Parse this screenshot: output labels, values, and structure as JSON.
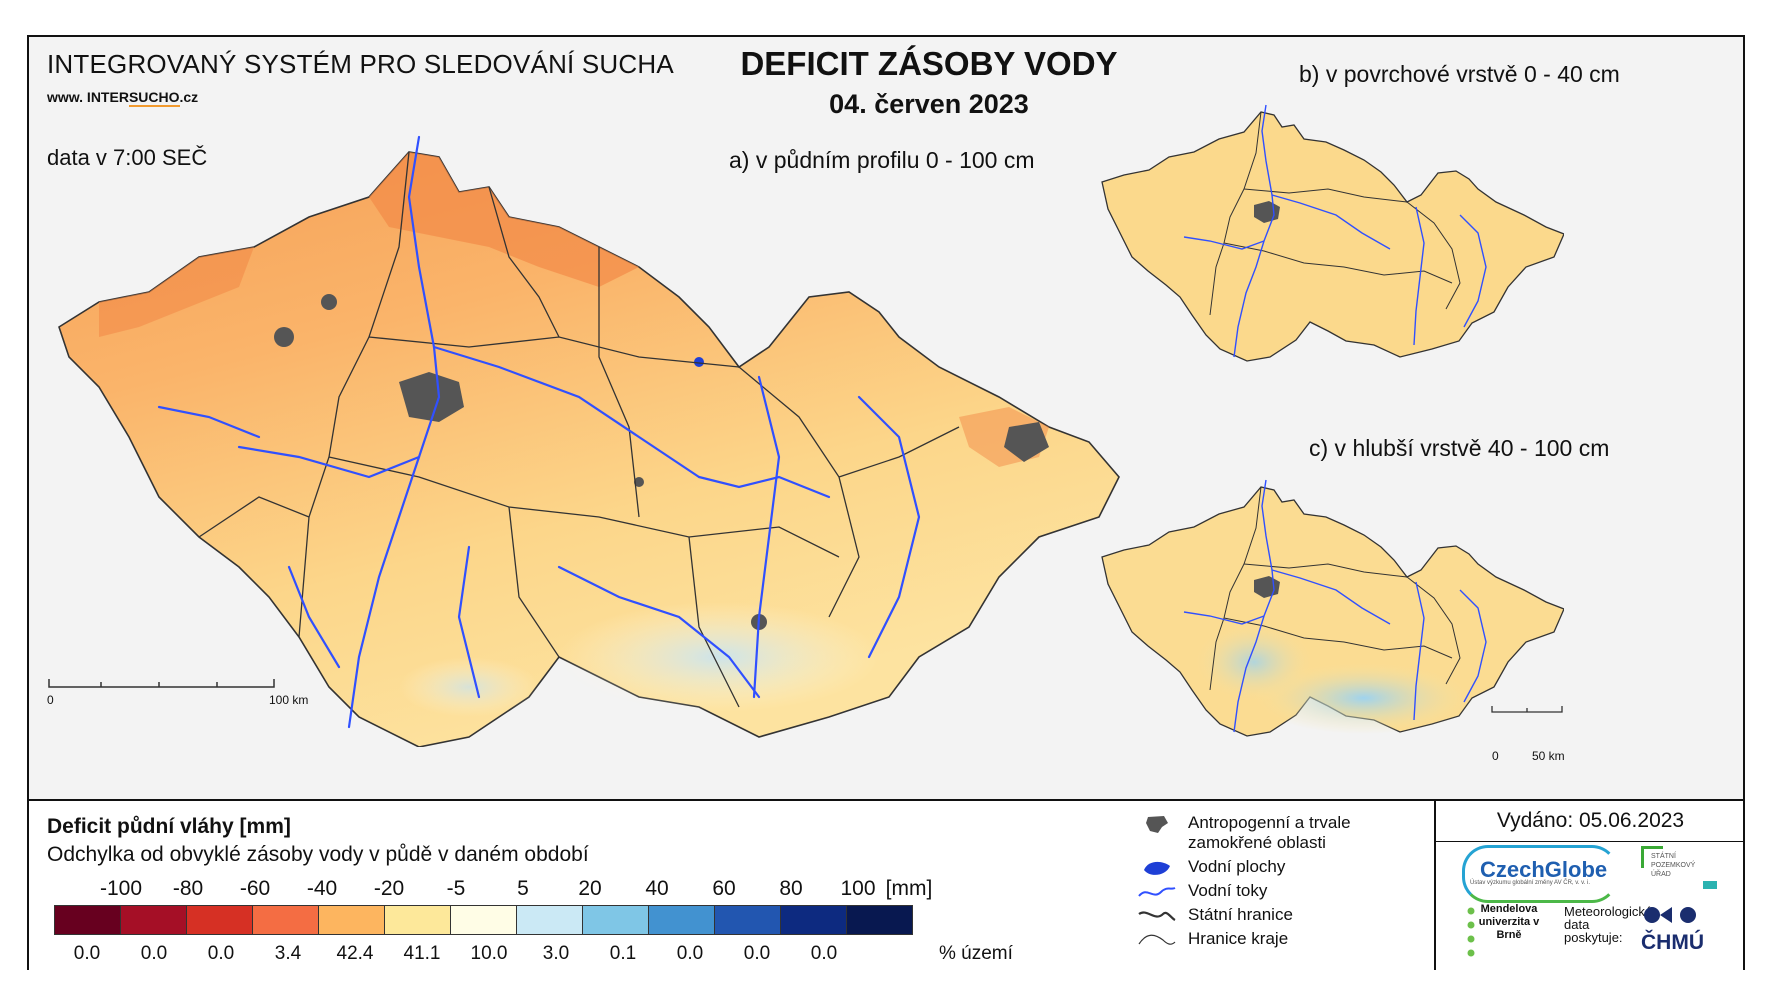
{
  "header": {
    "system_title": "INTEGROVANÝ SYSTÉM PRO SLEDOVÁNÍ SUCHA",
    "website_prefix": "www. INTER",
    "website_highlight": "SUCHO",
    "website_suffix": ".cz",
    "data_time": "data v 7:00 SEČ",
    "main_title": "DEFICIT ZÁSOBY VODY",
    "main_date": "04. červen 2023"
  },
  "panels": {
    "a_title": "a) v půdním profilu 0 - 100 cm",
    "b_title": "b) v povrchové vrstvě 0 - 40 cm",
    "c_title": "c) v hlubší vrstvě 40 - 100 cm"
  },
  "scale_bars": {
    "main_start": "0",
    "main_end": "100 km",
    "small_start": "0",
    "small_end": "50 km"
  },
  "legend": {
    "title": "Deficit půdní vláhy  [mm]",
    "subtitle": "Odchylka od obvyklé zásoby vody v půdě v daném období",
    "ticks": [
      "-100",
      "-80",
      "-60",
      "-40",
      "-20",
      "-5",
      "5",
      "20",
      "40",
      "60",
      "80",
      "100"
    ],
    "unit": "[mm]",
    "colors": [
      "#67001f",
      "#a50f26",
      "#d63024",
      "#f46d43",
      "#fdb55f",
      "#fde89a",
      "#fffde6",
      "#cbe9f5",
      "#7fc6e6",
      "#4292d0",
      "#2256b0",
      "#0d2a80",
      "#081850"
    ],
    "percent_values": [
      "0.0",
      "0.0",
      "0.0",
      "3.4",
      "42.4",
      "41.1",
      "10.0",
      "3.0",
      "0.1",
      "0.0",
      "0.0",
      "0.0"
    ],
    "percent_label": "% území"
  },
  "symbols": {
    "urban": "Antropogenní a trvale zamokřené oblasti",
    "water_bodies": "Vodní plochy",
    "rivers": "Vodní toky",
    "state_border": "Státní hranice",
    "region_border": "Hranice kraje"
  },
  "issued": "Vydáno: 05.06.2023",
  "logos": {
    "czechglobe": "CzechGlobe",
    "czechglobe_sub": "Ústav výzkumu globální změny AV ČR, v. v. i.",
    "spu": "STÁTNÍ POZEMKOVÝ ÚŘAD",
    "mendel": "Mendelova univerzita v Brně",
    "chmu_note": "Meteorologická data poskytuje:",
    "chmu": "ČHMÚ"
  }
}
